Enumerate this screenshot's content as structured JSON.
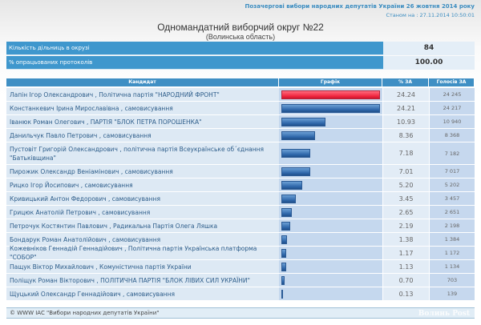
{
  "header": {
    "election": "Позачергові вибори народних депутатів України 26 жовтня 2014 року",
    "status": "Станом на : 27.11.2014 10:50:01",
    "title": "Одномандатний виборчий округ №22",
    "region": "(Волинська область)"
  },
  "summary": [
    {
      "label": "Кількість дільниць в окрузі",
      "value": "84"
    },
    {
      "label": "% опрацьованих протоколів",
      "value": "100.00"
    }
  ],
  "table": {
    "headers": [
      "Кандидат",
      "Графік",
      "% ЗА",
      "Голосів ЗА"
    ],
    "rows": [
      {
        "candidate": "Лапін Ігор Олександрович , Політична партія \"НАРОДНИЙ ФРОНТ\"",
        "pct": "24.24",
        "votes": "24 245"
      },
      {
        "candidate": "Констанкевич Ірина Мирославівна , самовисування",
        "pct": "24.21",
        "votes": "24 217"
      },
      {
        "candidate": "Іванюк Роман Олегович , ПАРТІЯ \"БЛОК ПЕТРА ПОРОШЕНКА\"",
        "pct": "10.93",
        "votes": "10 940"
      },
      {
        "candidate": "Данильчук Павло Петрович , самовисування",
        "pct": "8.36",
        "votes": "8 368"
      },
      {
        "candidate": "Пустовіт Григорій Олександрович , політична партія Всеукраїнське об´єднання \"Батьківщина\"",
        "pct": "7.18",
        "votes": "7 182"
      },
      {
        "candidate": "Пирожик Олександр Веніамінович , самовисування",
        "pct": "7.01",
        "votes": "7 017"
      },
      {
        "candidate": "Рицко Ігор Йосипович , самовисування",
        "pct": "5.20",
        "votes": "5 202"
      },
      {
        "candidate": "Кривицький Антон Федорович , самовисування",
        "pct": "3.45",
        "votes": "3 457"
      },
      {
        "candidate": "Грицюк Анатолій Петрович , самовисування",
        "pct": "2.65",
        "votes": "2 651"
      },
      {
        "candidate": "Петрочук Костянтин Павлович , Радикальна Партія Олега Ляшка",
        "pct": "2.19",
        "votes": "2 198"
      },
      {
        "candidate": "Бондарук Роман Анатолійович , самовисування",
        "pct": "1.38",
        "votes": "1 384"
      },
      {
        "candidate": "Кожевніков Геннадій Геннадійович , Політична партія Українська платформа \"СОБОР\"",
        "pct": "1.17",
        "votes": "1 172"
      },
      {
        "candidate": "Пащук Віктор Михайлович , Комуністична партія України",
        "pct": "1.13",
        "votes": "1 134"
      },
      {
        "candidate": "Поліщук Роман Вікторович , ПОЛІТИЧНА ПАРТІЯ \"БЛОК ЛІВИХ СИЛ УКРАЇНИ\"",
        "pct": "0.70",
        "votes": "703"
      },
      {
        "candidate": "Щуцький Олександр Геннадійович , самовисування",
        "pct": "0.13",
        "votes": "139"
      }
    ]
  },
  "colors": {
    "leader_bar": "#f0243d",
    "bar": "#2d65a8",
    "header": "#3f97cd"
  },
  "footer": {
    "copyright": "© WWW IAC \"Вибори народних депутатів України\"",
    "logo": "Волинь Post"
  }
}
